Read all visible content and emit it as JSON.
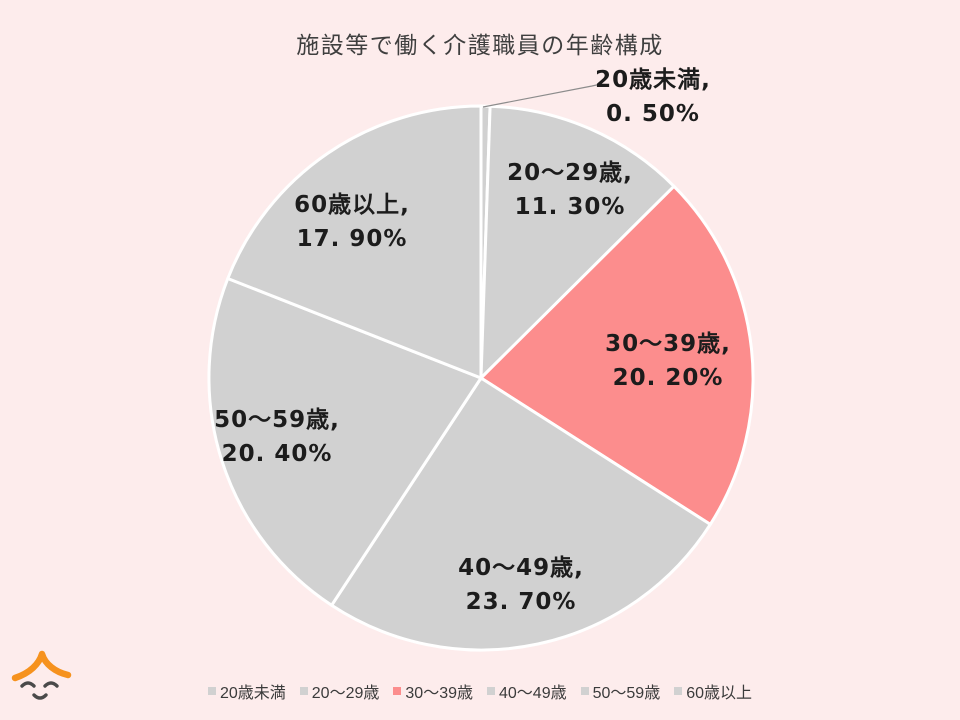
{
  "title": "施設等で働く介護職員の年齢構成",
  "colors": {
    "background": "#FDECEC",
    "slice_default": "#D1D1D1",
    "slice_highlight": "#FC8D8D",
    "slice_border": "#FFFFFF",
    "label_text": "#1C1C1C",
    "title_text": "#3F3F3F",
    "legend_text": "#3B3B3B",
    "leader_line": "#8C8C8C",
    "logo_orange": "#F6921E",
    "logo_face": "#4A4A4A"
  },
  "chart_data": {
    "type": "pie",
    "title": "施設等で働く介護職員の年齢構成",
    "start_angle_deg": 0,
    "direction": "clockwise",
    "legend_position": "bottom",
    "slices": [
      {
        "id": "under-20",
        "name": "20歳未満",
        "value": 0.5,
        "name_label": "20歳未満,",
        "value_label": "0. 50%",
        "color": "#D1D1D1",
        "highlight": false,
        "label_placement": "outside"
      },
      {
        "id": "20-29",
        "name": "20～29歳",
        "value": 11.3,
        "name_label": "20～29歳,",
        "value_label": "11. 30%",
        "color": "#D1D1D1",
        "highlight": false,
        "label_placement": "inside"
      },
      {
        "id": "30-39",
        "name": "30～39歳",
        "value": 20.2,
        "name_label": "30～39歳,",
        "value_label": "20. 20%",
        "color": "#FC8D8D",
        "highlight": true,
        "label_placement": "inside"
      },
      {
        "id": "40-49",
        "name": "40～49歳",
        "value": 23.7,
        "name_label": "40～49歳,",
        "value_label": "23. 70%",
        "color": "#D1D1D1",
        "highlight": false,
        "label_placement": "inside"
      },
      {
        "id": "50-59",
        "name": "50～59歳",
        "value": 20.4,
        "name_label": "50～59歳,",
        "value_label": "20. 40%",
        "color": "#D1D1D1",
        "highlight": false,
        "label_placement": "inside"
      },
      {
        "id": "60-plus",
        "name": "60歳以上",
        "value": 17.9,
        "name_label": "60歳以上,",
        "value_label": "17. 90%",
        "color": "#D1D1D1",
        "highlight": false,
        "label_placement": "inside"
      }
    ]
  }
}
